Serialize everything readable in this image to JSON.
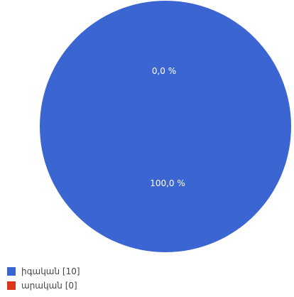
{
  "chart_data": {
    "type": "pie",
    "slices": [
      {
        "name": "իգական",
        "count": 10,
        "value": 100.0,
        "label": "100,0 %",
        "color": "#3b66d1"
      },
      {
        "name": "արական",
        "count": 0,
        "value": 0.0,
        "label": "0,0 %",
        "color": "#d9361a"
      }
    ],
    "legend": {
      "placement": "bottom-left",
      "items": [
        {
          "label": "իգական [10]",
          "color": "#3b66d1"
        },
        {
          "label": "արական [0]",
          "color": "#d9361a"
        }
      ]
    }
  }
}
